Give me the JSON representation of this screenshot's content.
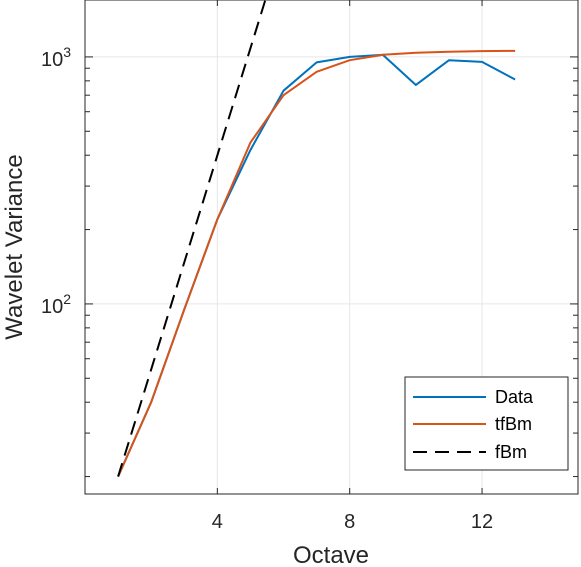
{
  "chart_data": {
    "type": "line",
    "title": "",
    "xlabel": "Octave",
    "ylabel": "Wavelet Variance",
    "xlim": [
      0,
      14.9
    ],
    "ylim": [
      17,
      1700
    ],
    "yscale": "log",
    "grid": true,
    "legend_position": "bottom-right",
    "x_ticks": [
      4,
      8,
      12
    ],
    "x_tick_labels": [
      "4",
      "8",
      "12"
    ],
    "y_ticks": [
      100,
      1000
    ],
    "y_tick_labels": [
      {
        "base": "10",
        "exp": "2"
      },
      {
        "base": "10",
        "exp": "3"
      }
    ],
    "series": [
      {
        "name": "Data",
        "color": "#0072BD",
        "style": "solid",
        "x": [
          1,
          2,
          3,
          4,
          5,
          6,
          7,
          8,
          9,
          10,
          11,
          12,
          13
        ],
        "y": [
          20,
          40,
          95,
          220,
          420,
          730,
          950,
          1000,
          1020,
          770,
          970,
          955,
          810
        ]
      },
      {
        "name": "tfBm",
        "color": "#D95319",
        "style": "solid",
        "x": [
          1,
          2,
          3,
          4,
          5,
          6,
          7,
          8,
          9,
          10,
          11,
          12,
          13
        ],
        "y": [
          20,
          40,
          95,
          220,
          450,
          700,
          870,
          970,
          1020,
          1040,
          1050,
          1055,
          1058
        ]
      },
      {
        "name": "fBm",
        "color": "#000000",
        "style": "dashed",
        "x": [
          1,
          5.45
        ],
        "y": [
          20,
          1700
        ]
      }
    ]
  }
}
